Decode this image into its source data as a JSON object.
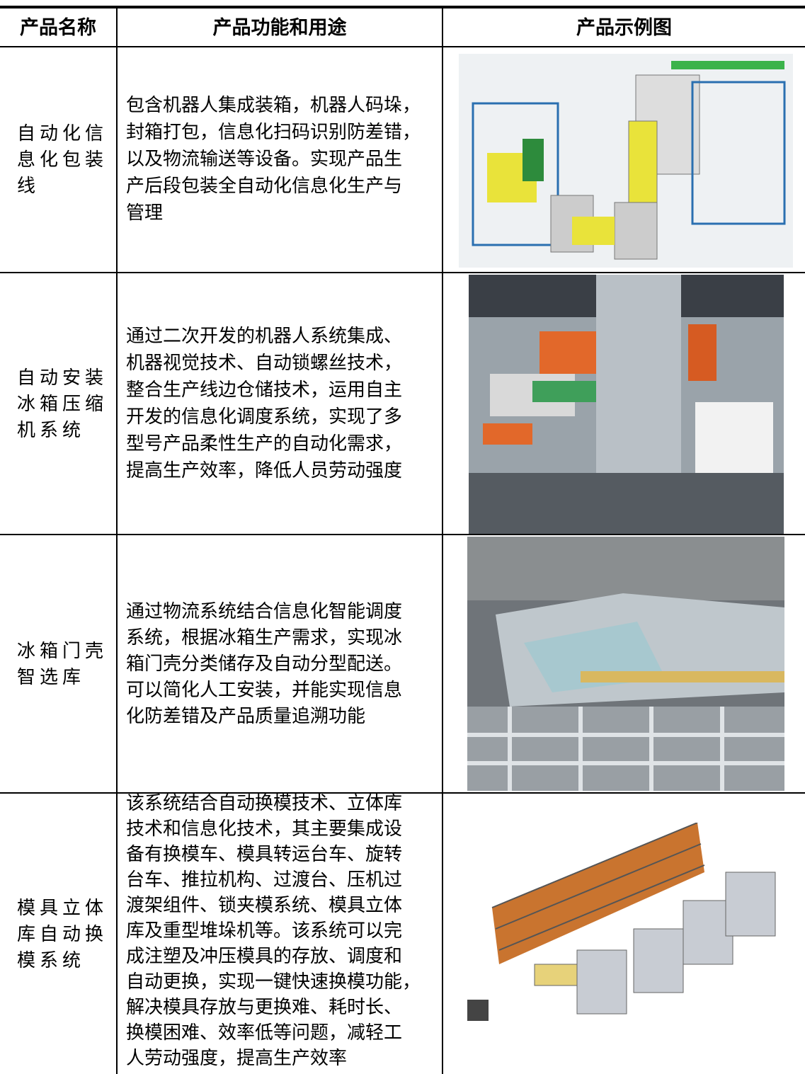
{
  "table": {
    "header": [
      "产品名称",
      "产品功能和用途",
      "产品示例图"
    ],
    "rows": [
      {
        "name": [
          "自动化信",
          "息化包装",
          "线"
        ],
        "description": [
          "包含机器人集成装箱，机器人码垛，",
          "封箱打包，信息化扫码识别防差错，",
          "以及物流输送等设备。实现产品生",
          "产后段包装全自动化信息化生产与",
          "管理"
        ]
      },
      {
        "name": [
          "自动安装",
          "冰箱压缩",
          "机系统"
        ],
        "description": [
          "通过二次开发的机器人系统集成、",
          "机器视觉技术、自动锁螺丝技术，",
          "整合生产线边仓储技术，运用自主",
          "开发的信息化调度系统，实现了多",
          "型号产品柔性生产的自动化需求，",
          "提高生产效率，降低人员劳动强度"
        ]
      },
      {
        "name": [
          "冰箱门壳",
          "智选库"
        ],
        "description": [
          "通过物流系统结合信息化智能调度",
          "系统，根据冰箱生产需求，实现冰",
          "箱门壳分类储存及自动分型配送。",
          "可以简化人工安装，并能实现信息",
          "化防差错及产品质量追溯功能"
        ]
      },
      {
        "name": [
          "模具立体",
          "库自动换",
          "模系统"
        ],
        "description": [
          "该系统结合自动换模技术、立体库",
          "技术和信息化技术，其主要集成设",
          "备有换模车、模具转运台车、旋转",
          "台车、推拉机构、过渡台、压机过",
          "渡架组件、锁夹模系统、模具立体",
          "库及重型堆垛机等。该系统可以完",
          "成注塑及冲压模具的存放、调度和",
          "自动更换，实现一键快速换模功能，",
          "解决模具存放与更换难、耗时长、",
          "换模困难、效率低等问题，减轻工",
          "人劳动强度，提高生产效率"
        ]
      }
    ]
  }
}
